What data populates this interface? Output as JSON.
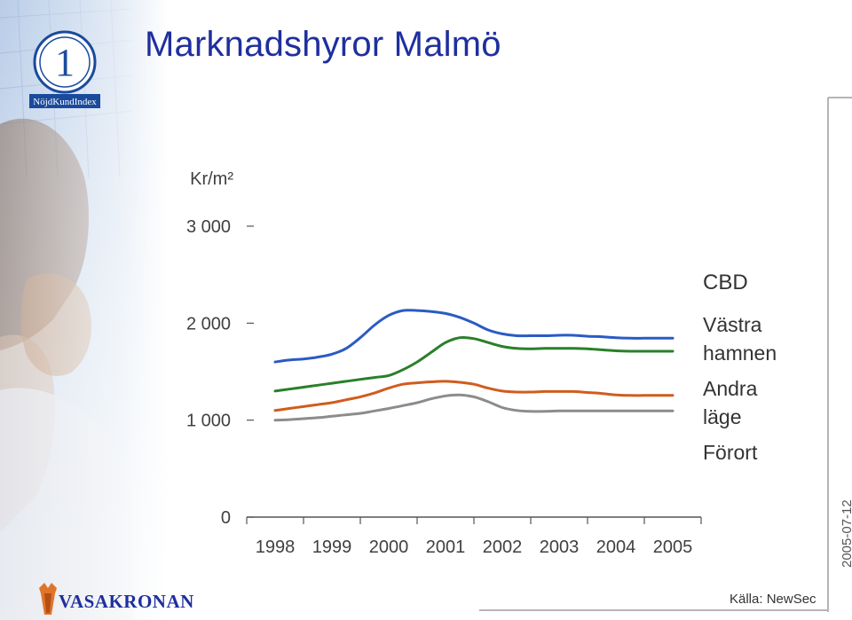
{
  "slide": {
    "title": "Marknadshyror Malmö",
    "date_stamp": "2005-07-12",
    "source": "Källa: NewSec",
    "badge_text": "NöjdKundIndex",
    "badge_number": "1",
    "company_name": "VASAKRONAN",
    "colors": {
      "title": "#1f2f9e",
      "badge": "#1a4a9c"
    }
  },
  "chart_data": {
    "type": "line",
    "ylabel": "Kr/m²",
    "ylim": [
      0,
      3000
    ],
    "yticks": [
      {
        "value": 0,
        "label": "0"
      },
      {
        "value": 1000,
        "label": "1 000"
      },
      {
        "value": 2000,
        "label": "2 000"
      },
      {
        "value": 3000,
        "label": "3 000"
      }
    ],
    "xlim": [
      1998,
      2006
    ],
    "xticks": [
      "1998",
      "1999",
      "2000",
      "2001",
      "2002",
      "2003",
      "2004",
      "2005"
    ],
    "grid": false,
    "legend_placement": "right",
    "x": [
      1998.0,
      1998.25,
      1998.5,
      1998.75,
      1999.0,
      1999.25,
      1999.5,
      1999.75,
      2000.0,
      2000.25,
      2000.5,
      2000.75,
      2001.0,
      2001.25,
      2001.5,
      2001.75,
      2002.0,
      2002.25,
      2002.5,
      2002.75,
      2003.0,
      2003.25,
      2003.5,
      2003.75,
      2004.0,
      2004.25,
      2004.5,
      2004.75,
      2005.0
    ],
    "series": [
      {
        "name": "CBD",
        "color": "#2a5bc4",
        "values": [
          1600,
          1620,
          1630,
          1650,
          1680,
          1740,
          1850,
          1980,
          2080,
          2130,
          2130,
          2120,
          2100,
          2060,
          2000,
          1930,
          1890,
          1870,
          1870,
          1870,
          1875,
          1875,
          1865,
          1860,
          1850,
          1845,
          1845,
          1845,
          1845
        ]
      },
      {
        "name": "Västra hamnen",
        "color": "#2a7f2a",
        "values": [
          1300,
          1320,
          1340,
          1360,
          1380,
          1400,
          1420,
          1440,
          1460,
          1520,
          1600,
          1700,
          1800,
          1850,
          1840,
          1800,
          1760,
          1740,
          1735,
          1740,
          1740,
          1740,
          1735,
          1725,
          1715,
          1710,
          1710,
          1710,
          1710
        ]
      },
      {
        "name": "Andra läge",
        "color": "#d05c1e",
        "values": [
          1100,
          1120,
          1140,
          1160,
          1180,
          1210,
          1240,
          1280,
          1330,
          1370,
          1385,
          1395,
          1400,
          1390,
          1370,
          1330,
          1300,
          1290,
          1290,
          1295,
          1295,
          1295,
          1285,
          1275,
          1260,
          1255,
          1255,
          1255,
          1255
        ]
      },
      {
        "name": "Förort",
        "color": "#8c8c8c",
        "values": [
          1000,
          1005,
          1015,
          1025,
          1040,
          1055,
          1070,
          1095,
          1120,
          1150,
          1180,
          1220,
          1250,
          1260,
          1240,
          1190,
          1130,
          1100,
          1090,
          1090,
          1095,
          1095,
          1095,
          1095,
          1095,
          1095,
          1095,
          1095,
          1095
        ]
      }
    ],
    "legend_lines": [
      {
        "name": "CBD",
        "lines": [
          "CBD"
        ]
      },
      {
        "name": "Västra hamnen",
        "lines": [
          "Västra",
          "hamnen"
        ]
      },
      {
        "name": "Andra läge",
        "lines": [
          "Andra",
          "läge"
        ]
      },
      {
        "name": "Förort",
        "lines": [
          "Förort"
        ]
      }
    ]
  }
}
